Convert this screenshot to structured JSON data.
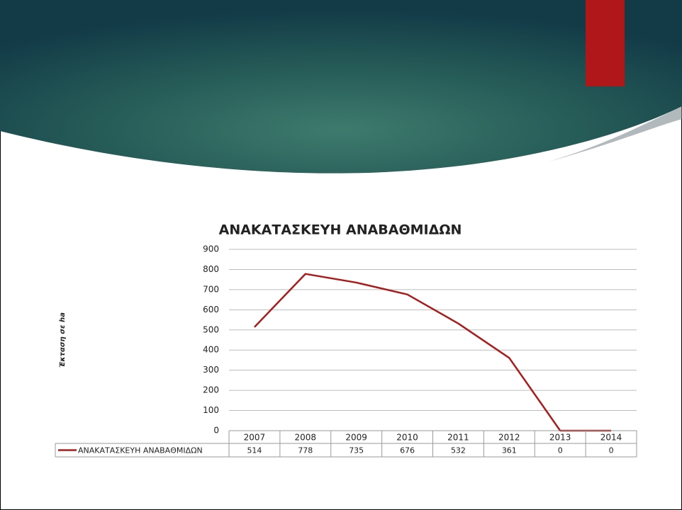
{
  "chart_data": {
    "type": "line",
    "title": "ΑΝΑΚΑΤΑΣΚΕΥΗ ΑΝΑΒΑΘΜΙΔΩΝ",
    "y_label": "Έκταση σε ha",
    "categories": [
      "2007",
      "2008",
      "2009",
      "2010",
      "2011",
      "2012",
      "2013",
      "2014"
    ],
    "series": [
      {
        "name": "ΑΝΑΚΑΤΑΣΚΕΥΗ ΑΝΑΒΑΘΜΙΔΩΝ",
        "color": "#a81c1c",
        "values": [
          514,
          778,
          735,
          676,
          532,
          361,
          0,
          0
        ]
      }
    ],
    "ylim": [
      0,
      900
    ],
    "yticks": [
      0,
      100,
      200,
      300,
      400,
      500,
      600,
      700,
      800,
      900
    ],
    "grid": true,
    "data_table": true
  }
}
